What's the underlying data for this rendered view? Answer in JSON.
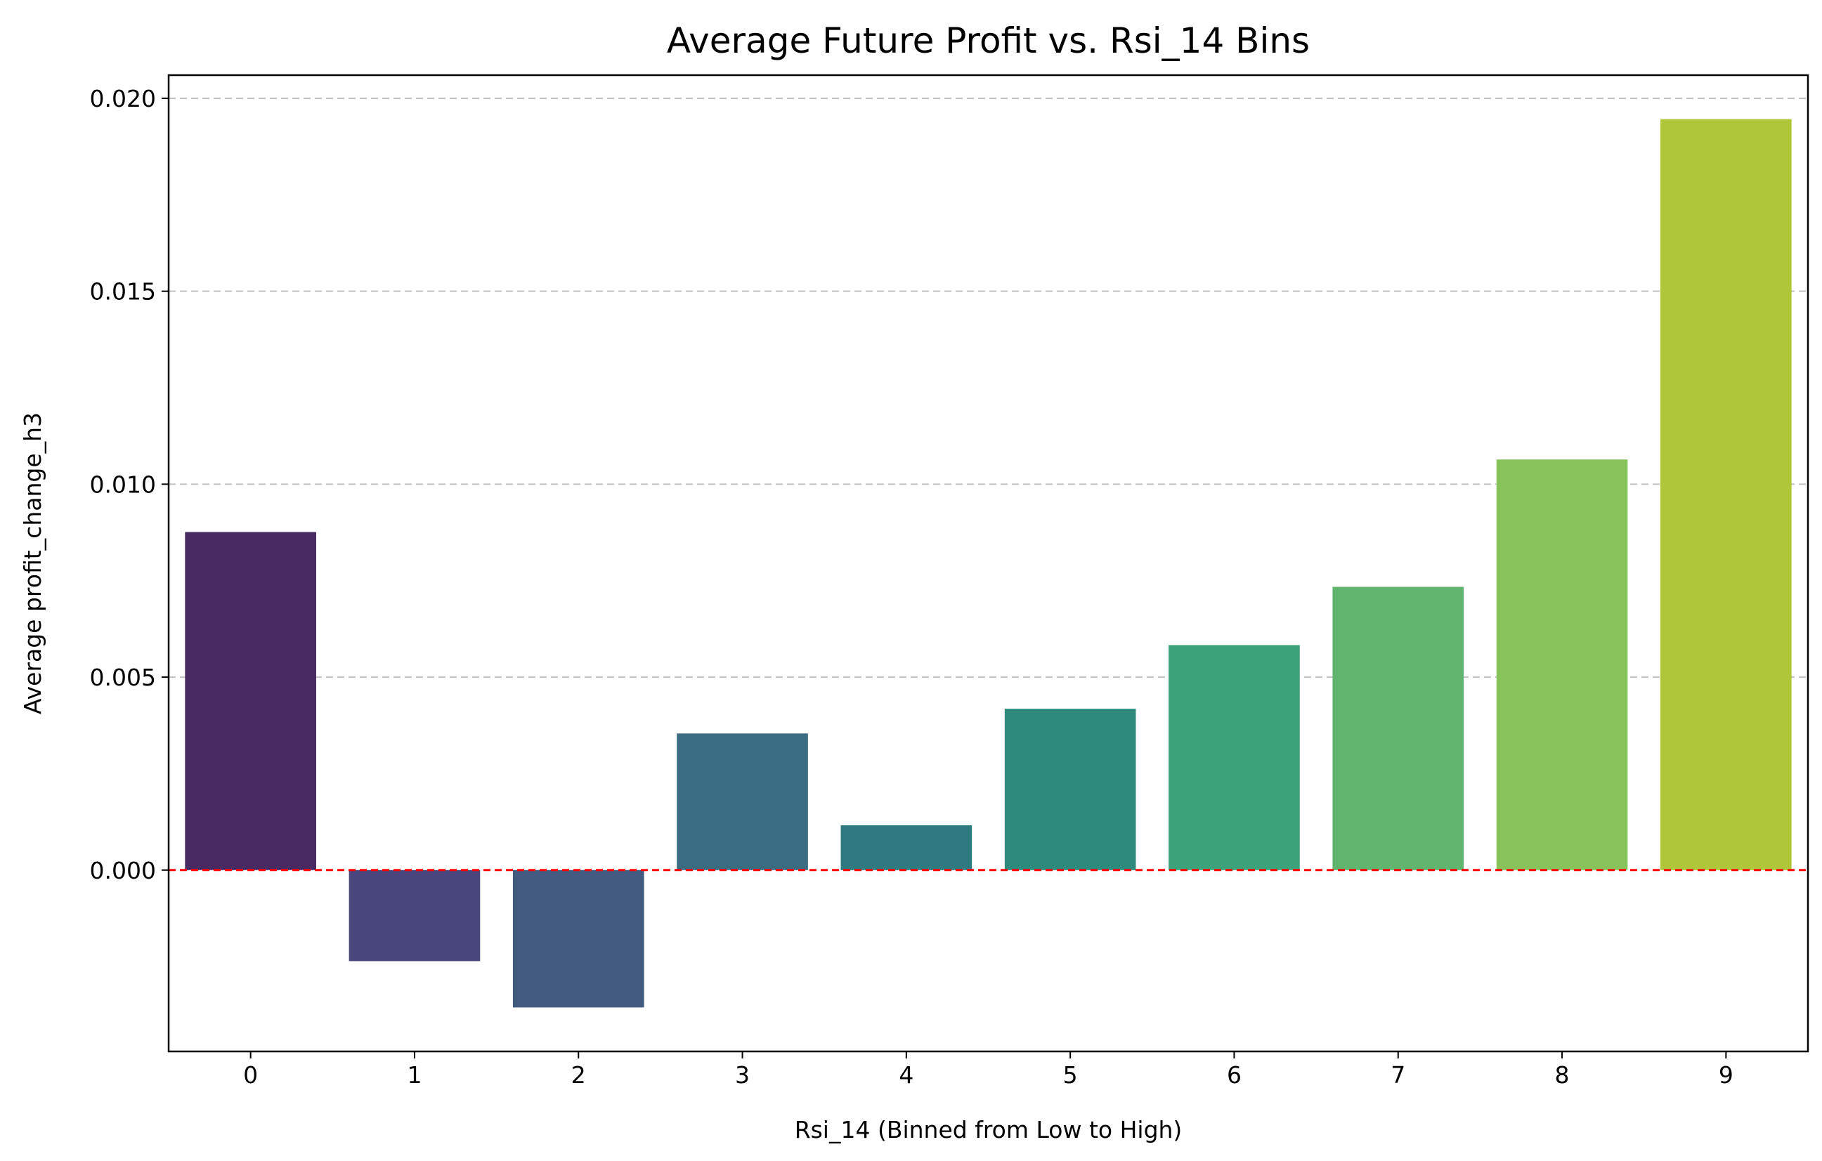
{
  "chart_data": {
    "type": "bar",
    "title": "Average Future Profit vs. Rsi_14 Bins",
    "xlabel": "Rsi_14 (Binned from Low to High)",
    "ylabel": "Average profit_change_h3",
    "categories": [
      "0",
      "1",
      "2",
      "3",
      "4",
      "5",
      "6",
      "7",
      "8",
      "9"
    ],
    "values": [
      0.00876,
      -0.00236,
      -0.00356,
      0.00354,
      0.00116,
      0.00418,
      0.00583,
      0.00734,
      0.01064,
      0.01946
    ],
    "colors": [
      "#482a63",
      "#48467c",
      "#425a80",
      "#3a6d82",
      "#2f7a81",
      "#2f8a7e",
      "#3ca27a",
      "#60b46e",
      "#88c25a",
      "#b0c63a"
    ],
    "ylim": [
      -0.0047,
      0.0206
    ],
    "yticks": [
      0.0,
      0.005,
      0.01,
      0.015,
      0.02
    ],
    "ytick_labels": [
      "0.000",
      "0.005",
      "0.010",
      "0.015",
      "0.020"
    ],
    "grid": "y-dashed",
    "reference_line": {
      "y": 0.0,
      "color": "#ff0000",
      "style": "dashed"
    }
  }
}
